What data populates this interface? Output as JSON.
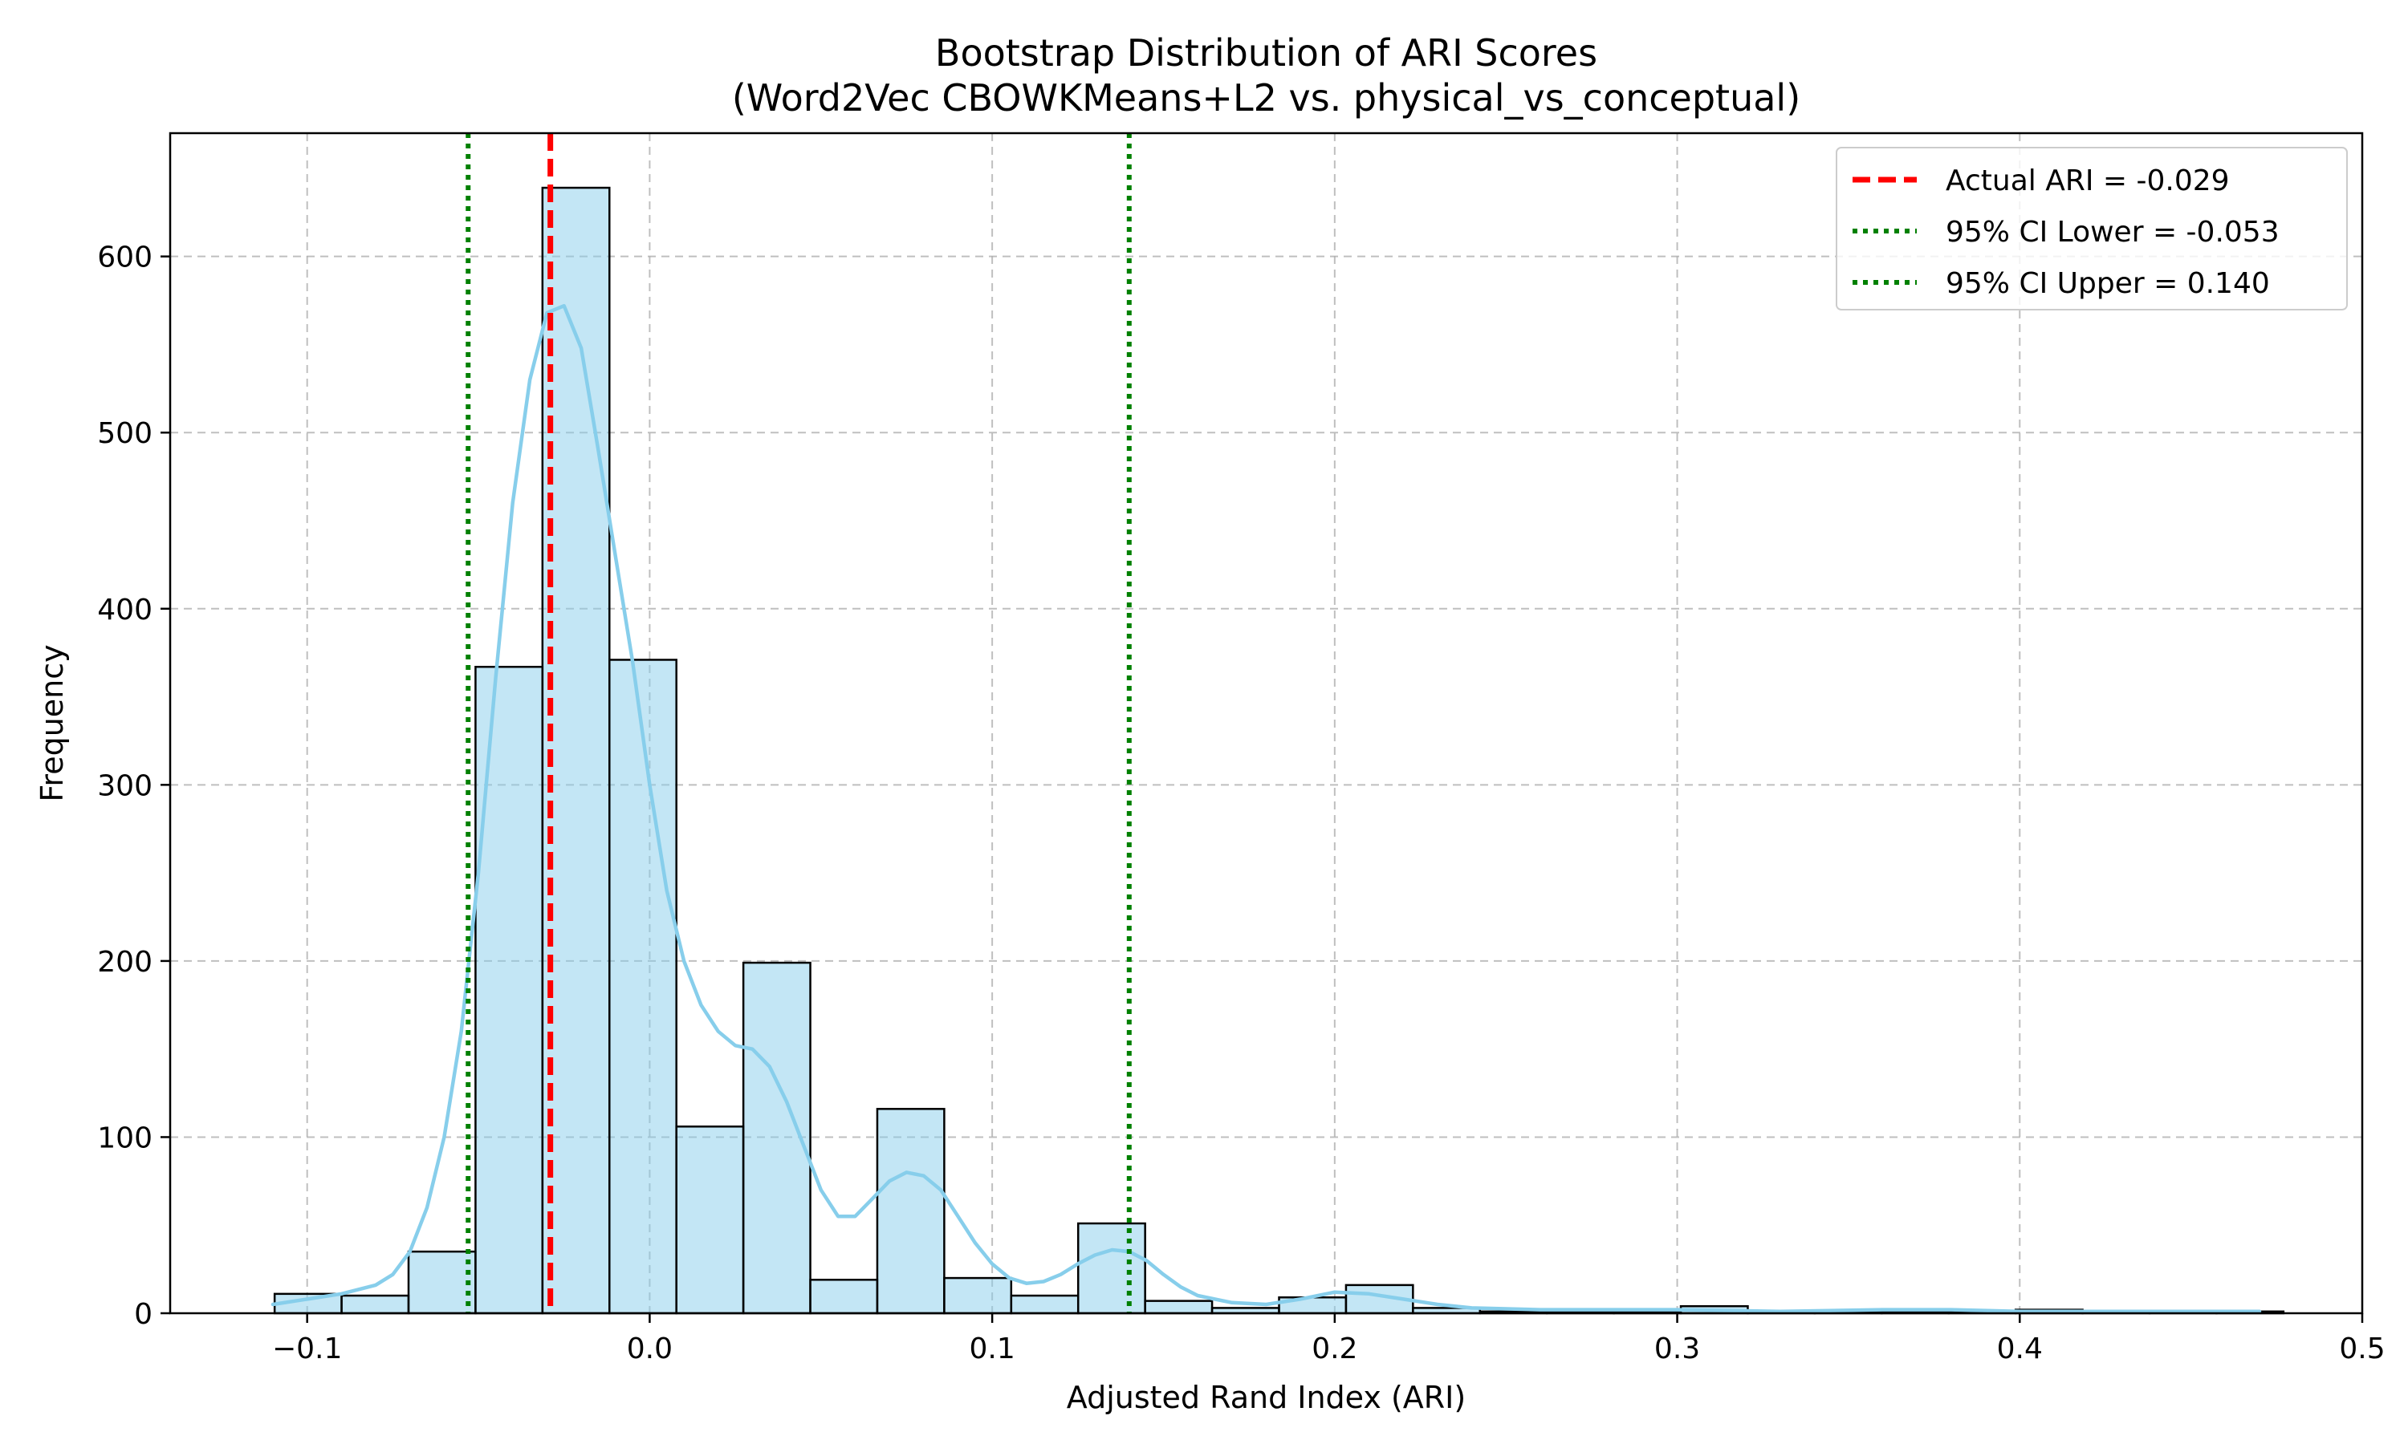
{
  "chart_data": {
    "type": "bar",
    "title": "Bootstrap Distribution of ARI Scores",
    "subtitle": "(Word2Vec CBOWKMeans+L2 vs. physical_vs_conceptual)",
    "xlabel": "Adjusted Rand Index (ARI)",
    "ylabel": "Frequency",
    "xlim": [
      -0.14,
      0.5
    ],
    "ylim": [
      0,
      670
    ],
    "x_ticks": [
      -0.1,
      0.0,
      0.1,
      0.2,
      0.3,
      0.4,
      0.5
    ],
    "x_tick_labels": [
      "−0.1",
      "0.0",
      "0.1",
      "0.2",
      "0.3",
      "0.4",
      "0.5"
    ],
    "y_ticks": [
      0,
      100,
      200,
      300,
      400,
      500,
      600
    ],
    "y_tick_labels": [
      "0",
      "100",
      "200",
      "300",
      "400",
      "500",
      "600"
    ],
    "grid": true,
    "legend_position": "top-right",
    "histogram": {
      "bin_start": -0.1095,
      "bin_width": 0.01955,
      "counts": [
        11,
        10,
        35,
        367,
        639,
        371,
        106,
        199,
        19,
        116,
        20,
        10,
        51,
        7,
        3,
        9,
        16,
        3,
        1,
        1,
        1,
        4,
        1,
        1,
        1,
        1,
        2,
        1,
        1,
        1
      ],
      "fill_color": "#87ceeb",
      "edge_color": "#000000"
    },
    "kde": {
      "color": "#87ceeb",
      "x": [
        -0.11,
        -0.09,
        -0.08,
        -0.075,
        -0.07,
        -0.065,
        -0.06,
        -0.055,
        -0.05,
        -0.045,
        -0.04,
        -0.035,
        -0.03,
        -0.025,
        -0.02,
        -0.015,
        -0.01,
        -0.005,
        0.0,
        0.005,
        0.01,
        0.015,
        0.02,
        0.025,
        0.03,
        0.035,
        0.04,
        0.045,
        0.05,
        0.055,
        0.06,
        0.065,
        0.07,
        0.075,
        0.08,
        0.085,
        0.09,
        0.095,
        0.1,
        0.105,
        0.11,
        0.115,
        0.12,
        0.125,
        0.13,
        0.135,
        0.14,
        0.145,
        0.15,
        0.155,
        0.16,
        0.17,
        0.18,
        0.19,
        0.2,
        0.21,
        0.22,
        0.23,
        0.24,
        0.26,
        0.28,
        0.3,
        0.33,
        0.36,
        0.38,
        0.4,
        0.44,
        0.47
      ],
      "y": [
        5,
        11,
        16,
        22,
        35,
        60,
        100,
        160,
        250,
        360,
        460,
        530,
        568,
        572,
        548,
        490,
        430,
        370,
        300,
        240,
        200,
        175,
        160,
        152,
        150,
        140,
        120,
        95,
        70,
        55,
        55,
        65,
        75,
        80,
        78,
        70,
        55,
        40,
        28,
        20,
        17,
        18,
        22,
        28,
        33,
        36,
        35,
        30,
        22,
        15,
        10,
        6,
        5,
        8,
        12,
        11,
        8,
        5,
        3,
        2,
        2,
        2,
        1,
        2,
        2,
        1,
        1,
        1
      ]
    },
    "reference_lines": [
      {
        "label": "Actual ARI = -0.029",
        "x": -0.029,
        "color": "#ff0000",
        "style": "dashed"
      },
      {
        "label": "95% CI Lower = -0.053",
        "x": -0.053,
        "color": "#008000",
        "style": "dotted"
      },
      {
        "label": "95% CI Upper = 0.140",
        "x": 0.14,
        "color": "#008000",
        "style": "dotted"
      }
    ]
  }
}
